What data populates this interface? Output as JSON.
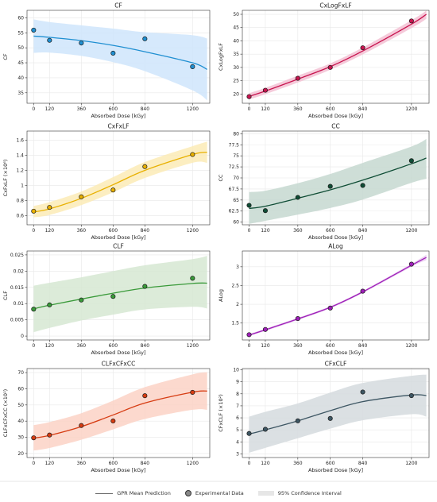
{
  "legend": {
    "mean": "GPR Mean Prediction",
    "data": "Experimental Data",
    "ci": "95% Confidence Interval"
  },
  "chart_data": [
    {
      "type": "scatter",
      "title": "CF",
      "xlabel": "Absorbed Dose [kGy]",
      "ylabel": "CF",
      "xlim": [
        -50,
        1330
      ],
      "ylim": [
        31.5,
        62.5
      ],
      "yticks": [
        35,
        40,
        45,
        50,
        55,
        60
      ],
      "ytick_labels": [
        "35",
        "40",
        "45",
        "50",
        "55",
        "60"
      ],
      "xticks": [
        0,
        120,
        360,
        600,
        840,
        1200
      ],
      "points": {
        "x": [
          0,
          120,
          360,
          600,
          840,
          1200
        ],
        "y": [
          55.9,
          52.5,
          51.6,
          48.2,
          53.0,
          43.7
        ]
      },
      "mean": {
        "x": [
          0,
          120,
          360,
          600,
          840,
          1200,
          1310
        ],
        "y": [
          53.9,
          53.5,
          52.4,
          50.8,
          48.7,
          45.0,
          42.8
        ]
      },
      "ci_lower": [
        48.3,
        48.4,
        47.3,
        45.2,
        42.2,
        35.8,
        32.5
      ],
      "ci_upper": [
        59.5,
        58.6,
        57.5,
        56.4,
        55.2,
        54.2,
        53.1
      ],
      "grid": true,
      "color": "#1f8fd1",
      "band_color": "#cfe5fb"
    },
    {
      "type": "scatter",
      "title": "CxLogFxLF",
      "xlabel": "Absorbed Dose [kGy]",
      "ylabel": "CxLogFxLF",
      "xlim": [
        -50,
        1330
      ],
      "ylim": [
        16.5,
        51.5
      ],
      "yticks": [
        20,
        25,
        30,
        35,
        40,
        45,
        50
      ],
      "ytick_labels": [
        "20",
        "25",
        "30",
        "35",
        "40",
        "45",
        "50"
      ],
      "xticks": [
        0,
        120,
        360,
        600,
        840,
        1200
      ],
      "points": {
        "x": [
          0,
          120,
          360,
          600,
          840,
          1200
        ],
        "y": [
          19.0,
          21.4,
          25.9,
          30.0,
          37.4,
          47.5
        ]
      },
      "mean": {
        "x": [
          0,
          120,
          360,
          600,
          840,
          1200,
          1310
        ],
        "y": [
          19.1,
          21.1,
          25.6,
          30.3,
          36.2,
          46.3,
          50.0
        ]
      },
      "ci_lower": [
        17.9,
        19.9,
        24.3,
        29.1,
        34.9,
        44.8,
        48.3
      ],
      "ci_upper": [
        20.3,
        22.3,
        26.9,
        31.5,
        37.5,
        47.8,
        51.4
      ],
      "grid": true,
      "color": "#c8144f",
      "band_color": "#f3c1d3"
    },
    {
      "type": "scatter",
      "title": "CxFxLF",
      "xlabel": "Absorbed Dose [kGy]",
      "ylabel": "CxFxLF (×10⁶)",
      "xlim": [
        -50,
        1330
      ],
      "ylim": [
        0.48,
        1.72
      ],
      "yticks": [
        0.6,
        0.8,
        1.0,
        1.2,
        1.4,
        1.6
      ],
      "ytick_labels": [
        "0.6",
        "0.8",
        "1",
        "1.2",
        "1.4",
        "1.6"
      ],
      "xticks": [
        0,
        120,
        360,
        600,
        840,
        1200
      ],
      "points": {
        "x": [
          0,
          120,
          360,
          600,
          840,
          1200
        ],
        "y": [
          0.66,
          0.71,
          0.85,
          0.94,
          1.25,
          1.41
        ]
      },
      "mean": {
        "x": [
          0,
          120,
          360,
          600,
          840,
          1200,
          1310
        ],
        "y": [
          0.65,
          0.69,
          0.83,
          1.01,
          1.2,
          1.41,
          1.44
        ]
      },
      "ci_lower": [
        0.58,
        0.61,
        0.74,
        0.91,
        1.1,
        1.3,
        1.3
      ],
      "ci_upper": [
        0.73,
        0.78,
        0.92,
        1.11,
        1.31,
        1.52,
        1.58
      ],
      "grid": true,
      "color": "#e8b000",
      "band_color": "#fcebb6"
    },
    {
      "type": "scatter",
      "title": "CC",
      "xlabel": "Absorbed Dose [kGy]",
      "ylabel": "CC",
      "xlim": [
        -50,
        1330
      ],
      "ylim": [
        59.4,
        80.6
      ],
      "yticks": [
        60,
        62.5,
        65,
        67.5,
        70,
        72.5,
        75,
        77.5,
        80
      ],
      "ytick_labels": [
        "60",
        "62.5",
        "65",
        "67.5",
        "70",
        "72.5",
        "75",
        "77.5",
        "80"
      ],
      "xticks": [
        0,
        120,
        360,
        600,
        840,
        1200
      ],
      "points": {
        "x": [
          0,
          120,
          360,
          600,
          840,
          1200
        ],
        "y": [
          63.8,
          62.6,
          65.6,
          68.1,
          68.3,
          73.9
        ]
      },
      "mean": {
        "x": [
          0,
          120,
          360,
          600,
          840,
          1200,
          1310
        ],
        "y": [
          63.1,
          63.6,
          65.4,
          67.3,
          69.5,
          73.2,
          74.5
        ]
      },
      "ci_lower": [
        59.6,
        60.3,
        61.7,
        63.2,
        65.1,
        68.9,
        69.8
      ],
      "ci_upper": [
        66.8,
        67.1,
        68.8,
        70.9,
        73.4,
        77.1,
        78.8
      ],
      "grid": true,
      "color": "#0f4d35",
      "band_color": "#c5d8d0"
    },
    {
      "type": "scatter",
      "title": "CLF",
      "xlabel": "Absorbed Dose [kGy]",
      "ylabel": "CLF",
      "xlim": [
        -50,
        1330
      ],
      "ylim": [
        -0.0012,
        0.0262
      ],
      "yticks": [
        0,
        0.005,
        0.01,
        0.015,
        0.02,
        0.025
      ],
      "ytick_labels": [
        "0",
        "0.005",
        "0.01",
        "0.015",
        "0.02",
        "0.025"
      ],
      "xticks": [
        0,
        120,
        360,
        600,
        840,
        1200
      ],
      "points": {
        "x": [
          0,
          120,
          360,
          600,
          840,
          1200
        ],
        "y": [
          0.0083,
          0.0096,
          0.0111,
          0.0122,
          0.0153,
          0.0178
        ]
      },
      "mean": {
        "x": [
          0,
          120,
          360,
          600,
          840,
          1200,
          1310
        ],
        "y": [
          0.0084,
          0.0095,
          0.0114,
          0.0132,
          0.0148,
          0.0162,
          0.0163
        ]
      },
      "ci_lower": [
        0.0012,
        0.0025,
        0.0048,
        0.0066,
        0.0082,
        0.009,
        0.0085
      ],
      "ci_upper": [
        0.0155,
        0.0164,
        0.0181,
        0.02,
        0.0218,
        0.0237,
        0.0247
      ],
      "grid": true,
      "color": "#3a9a3a",
      "band_color": "#d6e8d2"
    },
    {
      "type": "scatter",
      "title": "ALog",
      "xlabel": "Absorbed Dose [kGy]",
      "ylabel": "ALog",
      "xlim": [
        -50,
        1330
      ],
      "ylim": [
        1.05,
        3.42
      ],
      "yticks": [
        1.5,
        2.0,
        2.5,
        3.0
      ],
      "ytick_labels": [
        "1.5",
        "2",
        "2.5",
        "3"
      ],
      "xticks": [
        0,
        120,
        360,
        600,
        840,
        1200
      ],
      "points": {
        "x": [
          0,
          120,
          360,
          600,
          840,
          1200
        ],
        "y": [
          1.19,
          1.33,
          1.62,
          1.9,
          2.35,
          3.07
        ]
      },
      "mean": {
        "x": [
          0,
          120,
          360,
          600,
          840,
          1200,
          1310
        ],
        "y": [
          1.18,
          1.32,
          1.61,
          1.92,
          2.33,
          3.04,
          3.25
        ]
      },
      "ci_lower": [
        1.15,
        1.29,
        1.58,
        1.89,
        2.3,
        3.0,
        3.18
      ],
      "ci_upper": [
        1.21,
        1.35,
        1.64,
        1.95,
        2.36,
        3.08,
        3.32
      ],
      "grid": true,
      "color": "#9e1fb8",
      "band_color": "#e8c6f0"
    },
    {
      "type": "scatter",
      "title": "CLFxCFxCC",
      "xlabel": "Absorbed Dose [kGy]",
      "ylabel": "CLFxCFxCC (×10¹)",
      "xlim": [
        -50,
        1330
      ],
      "ylim": [
        17.5,
        72.5
      ],
      "yticks": [
        20,
        30,
        40,
        50,
        60,
        70
      ],
      "ytick_labels": [
        "20",
        "30",
        "40",
        "50",
        "60",
        "70"
      ],
      "xticks": [
        0,
        120,
        360,
        600,
        840,
        1200
      ],
      "points": {
        "x": [
          0,
          120,
          360,
          600,
          840,
          1200
        ],
        "y": [
          29.7,
          31.4,
          37.3,
          40.1,
          55.7,
          57.8
        ]
      },
      "mean": {
        "x": [
          0,
          120,
          360,
          600,
          840,
          1200,
          1310
        ],
        "y": [
          29.5,
          31.2,
          36.6,
          43.8,
          51.2,
          57.9,
          58.6
        ]
      },
      "ci_lower": [
        21.8,
        23.4,
        28.5,
        34.9,
        41.3,
        47.0,
        47.0
      ],
      "ci_upper": [
        37.5,
        39.4,
        44.9,
        52.7,
        61.0,
        68.9,
        70.3
      ],
      "grid": true,
      "color": "#d63c12",
      "band_color": "#fbd2c6"
    },
    {
      "type": "scatter",
      "title": "CFxCLF",
      "xlabel": "Absorbed Dose [kGy]",
      "ylabel": "CFxCLF (×10²)",
      "xlim": [
        -50,
        1330
      ],
      "ylim": [
        2.7,
        10.1
      ],
      "yticks": [
        3,
        4,
        5,
        6,
        7,
        8,
        9,
        10
      ],
      "ytick_labels": [
        "3",
        "4",
        "5",
        "6",
        "7",
        "8",
        "9",
        "10"
      ],
      "xticks": [
        0,
        120,
        360,
        600,
        840,
        1200
      ],
      "points": {
        "x": [
          0,
          120,
          360,
          600,
          840,
          1200
        ],
        "y": [
          4.7,
          5.05,
          5.75,
          5.95,
          8.15,
          7.85
        ]
      },
      "mean": {
        "x": [
          0,
          120,
          360,
          600,
          840,
          1200,
          1310
        ],
        "y": [
          4.65,
          5.0,
          5.75,
          6.6,
          7.35,
          7.9,
          7.85
        ]
      },
      "ci_lower": [
        3.1,
        3.5,
        4.3,
        5.1,
        5.8,
        6.3,
        6.1
      ],
      "ci_upper": [
        6.1,
        6.5,
        7.2,
        8.1,
        8.9,
        9.5,
        9.6
      ],
      "grid": true,
      "color": "#3d5663",
      "band_color": "#d5dbde"
    }
  ]
}
